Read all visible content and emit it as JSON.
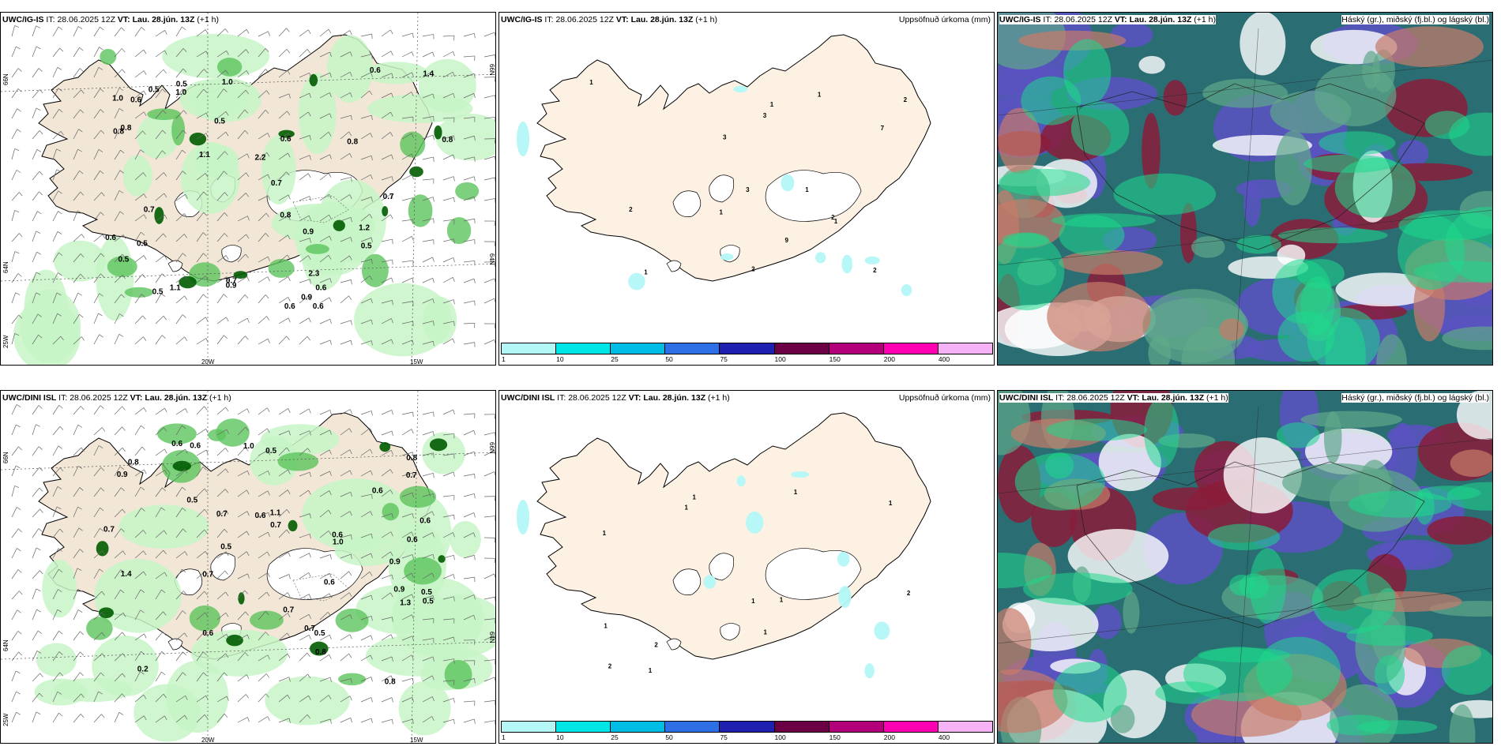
{
  "top_row": {
    "wind_panel": {
      "model": "UWC/IG-IS",
      "it_label": "IT:",
      "it_value": "28.06.2025 12Z",
      "vt_label": "VT:",
      "vt_value": "Lau. 28.jún. 13Z",
      "lead": "(+1 h)"
    },
    "precip_panel": {
      "model": "UWC/IG-IS",
      "it_label": "IT:",
      "it_value": "28.06.2025 12Z",
      "vt_label": "VT:",
      "vt_value": "Lau. 28.jún. 13Z",
      "lead": "(+1 h)",
      "right_title": "Uppsöfnuð úrkoma (mm)"
    },
    "cloud_panel": {
      "model": "UWC/IG-IS",
      "it_label": "IT:",
      "it_value": "28.06.2025 12Z",
      "vt_label": "VT:",
      "vt_value": "Lau. 28.jún. 13Z",
      "lead": "(+1 h)",
      "right_title": "Háský (gr.), miðský (fj.bl.) og lágský (bl.)"
    }
  },
  "bottom_row": {
    "wind_panel": {
      "model": "UWC/DINI ISL",
      "it_label": "IT:",
      "it_value": "28.06.2025 12Z",
      "vt_label": "VT:",
      "vt_value": "Lau. 28.jún. 13Z",
      "lead": "(+1 h)"
    },
    "precip_panel": {
      "model": "UWC/DINI ISL",
      "it_label": "IT:",
      "it_value": "28.06.2025 12Z",
      "vt_label": "VT:",
      "vt_value": "Lau. 28.jún. 13Z",
      "lead": "(+1 h)",
      "right_title": "Uppsöfnuð úrkoma (mm)"
    },
    "cloud_panel": {
      "model": "UWC/DINI ISL",
      "it_label": "IT:",
      "it_value": "28.06.2025 12Z",
      "vt_label": "VT:",
      "vt_value": "Lau. 28.jún. 13Z",
      "lead": "(+1 h)",
      "right_title": "Háský (gr.), miðský (fj.bl.) og lágský (bl.)"
    }
  },
  "axis_labels": {
    "lon_20w": "20W",
    "lon_15w": "15W",
    "lon_25w": "25W",
    "lat_66n": "66N",
    "lat_64n": "64N"
  },
  "colorbar": {
    "ticks": [
      "1",
      "10",
      "25",
      "50",
      "75",
      "100",
      "150",
      "200",
      "400"
    ],
    "colors": [
      "#b3f7f7",
      "#00e6e6",
      "#00bde6",
      "#2f6fe6",
      "#2020b0",
      "#6b0045",
      "#b3007a",
      "#ff00b3",
      "#f5b3f5"
    ]
  },
  "colors": {
    "land": "#f2e6d6",
    "land_light": "#fdf1e4",
    "green_light": "#c7f5c7",
    "green_mid": "#5cc45c",
    "green_dark": "#005c00",
    "cyan_precip": "#b3f7f7",
    "cloud_teal": "#2a6e73",
    "cloud_purple": "#5a52c2",
    "cloud_maroon": "#8a1c3a",
    "cloud_bright": "#1dd98c"
  },
  "precip_labels_top": [
    "2",
    "2",
    "3",
    "2",
    "1",
    "1",
    "2",
    "1",
    "1",
    "1",
    "3",
    "3",
    "7",
    "9",
    "2",
    "1",
    "1"
  ],
  "precip_labels_bottom": [
    "1",
    "2",
    "2",
    "1",
    "1",
    "1",
    "1",
    "1",
    "1",
    "2",
    "1",
    "1",
    "1"
  ],
  "wind_labels_top": [
    "0.5",
    "0.6",
    "0.7",
    "0.8",
    "0.7",
    "0.7",
    "0.8",
    "0.5",
    "1.0",
    "0.5",
    "0.6",
    "0.5",
    "1.1",
    "2.3",
    "0.5",
    "1.4",
    "0.6",
    "1.0",
    "0.8",
    "0.9",
    "0.6",
    "2.2",
    "0.5",
    "1.2",
    "0.6",
    "1.1",
    "0.9",
    "0.6",
    "0.5",
    "0.8",
    "0.6",
    "0.7",
    "1.0",
    "0.8",
    "0.9"
  ],
  "wind_labels_bottom": [
    "0.6",
    "0.9",
    "0.7",
    "1.0",
    "0.6",
    "0.7",
    "0.8",
    "0.6",
    "0.9",
    "0.6",
    "0.5",
    "1.1",
    "0.5",
    "0.7",
    "0.6",
    "0.5",
    "0.8",
    "0.6",
    "0.8",
    "0.5",
    "0.7",
    "0.5",
    "0.6",
    "1.0",
    "0.7",
    "1.4",
    "0.2",
    "0.7",
    "0.9",
    "0.7",
    "0.5",
    "0.6",
    "1.3",
    "0.8",
    "0.6"
  ]
}
